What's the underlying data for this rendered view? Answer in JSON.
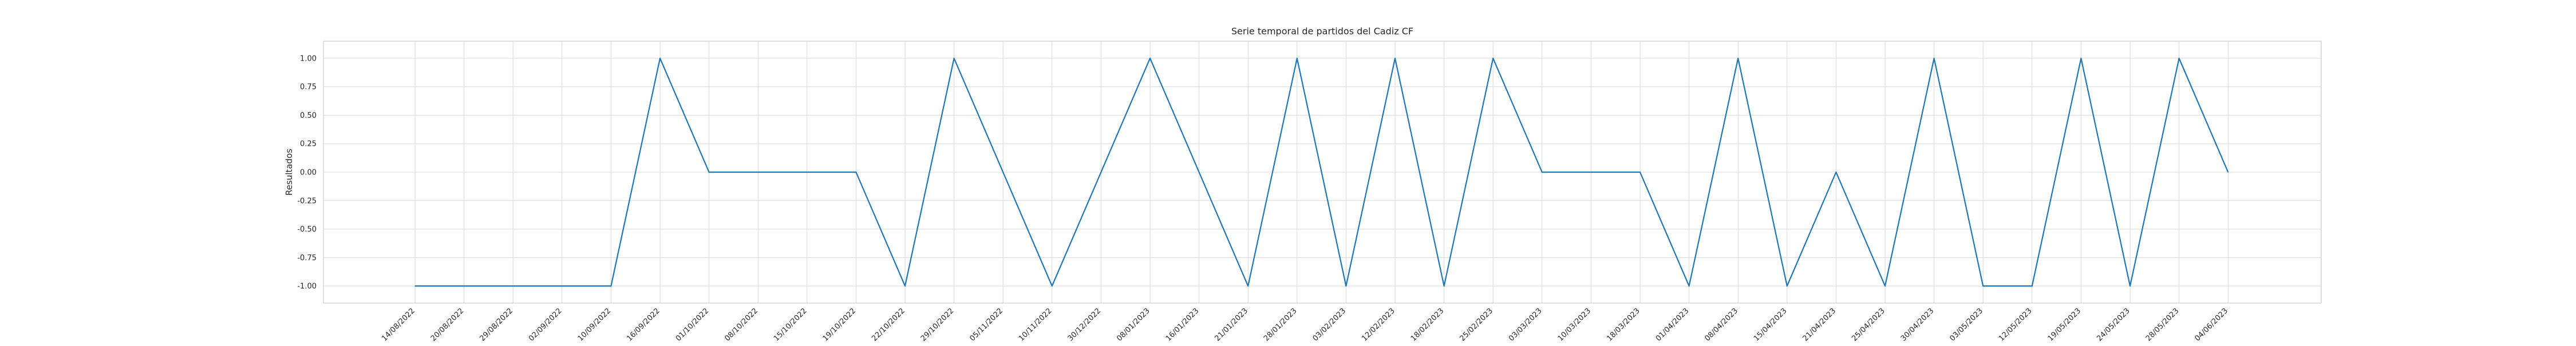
{
  "colors": {
    "series": "#1f77b4"
  },
  "chart_data": {
    "type": "line",
    "title": "Serie temporal de partidos del Cadiz CF",
    "xlabel": "",
    "ylabel": "Resultados",
    "ylim": [
      -1.15,
      1.15
    ],
    "yticks": [
      "-1.00",
      "-0.75",
      "-0.50",
      "-0.25",
      "0.00",
      "0.25",
      "0.50",
      "0.75",
      "1.00"
    ],
    "grid": true,
    "legend": "none",
    "x": [
      "14/08/2022",
      "20/08/2022",
      "29/08/2022",
      "02/09/2022",
      "10/09/2022",
      "16/09/2022",
      "01/10/2022",
      "08/10/2022",
      "15/10/2022",
      "19/10/2022",
      "22/10/2022",
      "29/10/2022",
      "05/11/2022",
      "10/11/2022",
      "30/12/2022",
      "08/01/2023",
      "16/01/2023",
      "21/01/2023",
      "28/01/2023",
      "03/02/2023",
      "12/02/2023",
      "18/02/2023",
      "25/02/2023",
      "03/03/2023",
      "10/03/2023",
      "18/03/2023",
      "01/04/2023",
      "08/04/2023",
      "15/04/2023",
      "21/04/2023",
      "25/04/2023",
      "30/04/2023",
      "03/05/2023",
      "12/05/2023",
      "19/05/2023",
      "24/05/2023",
      "28/05/2023",
      "04/06/2023"
    ],
    "series": [
      {
        "values": [
          -1,
          -1,
          -1,
          -1,
          -1,
          1,
          0,
          0,
          0,
          0,
          -1,
          1,
          0,
          -1,
          0,
          1,
          0,
          -1,
          1,
          -1,
          1,
          -1,
          1,
          0,
          0,
          0,
          -1,
          1,
          -1,
          0,
          -1,
          1,
          -1,
          -1,
          1,
          -1,
          1,
          0
        ]
      }
    ]
  }
}
